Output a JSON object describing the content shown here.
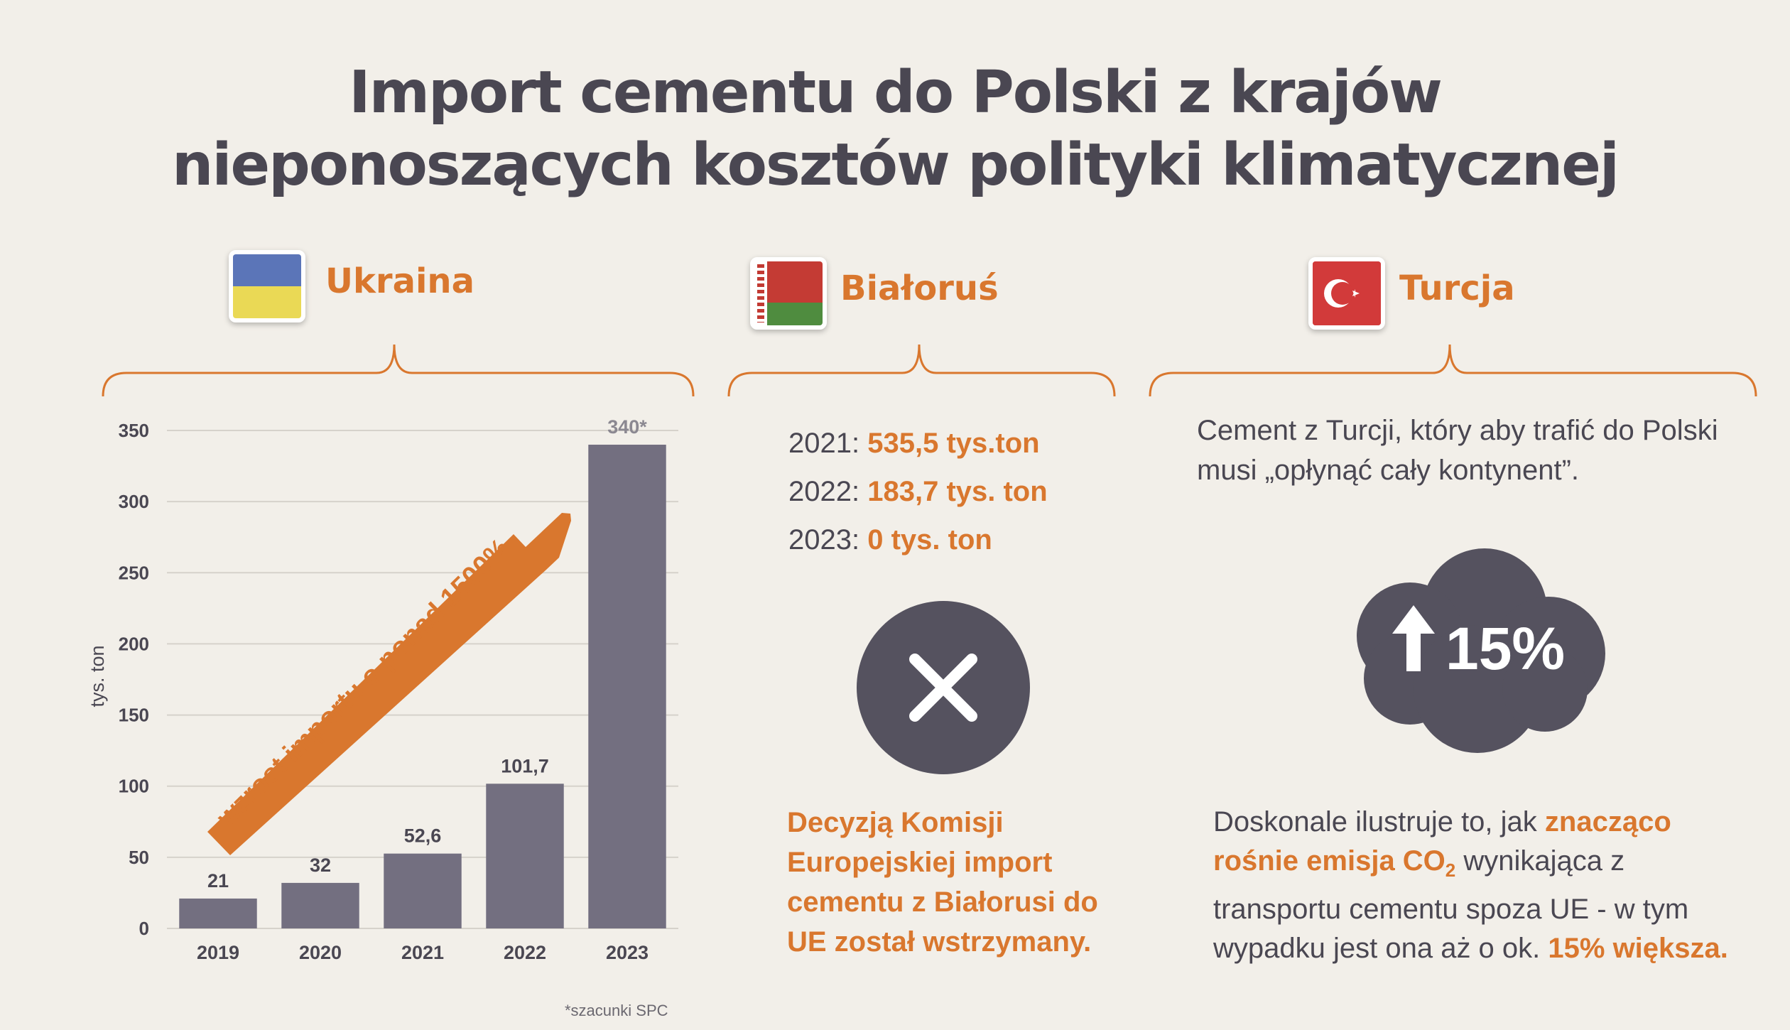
{
  "title": {
    "line1": "Import cementu do Polski z krajów",
    "line2": "nieponoszących kosztów polityki klimatycznej"
  },
  "colors": {
    "background": "#f2efe9",
    "accent": "#d9772e",
    "dark": "#4a4752",
    "bar": "#736f80",
    "cloud": "#55525f"
  },
  "ukraine": {
    "name": "Ukraina",
    "flag_icon": "ukraine-flag-icon"
  },
  "belarus": {
    "name": "Białoruś",
    "flag_icon": "belarus-flag-icon",
    "lines": [
      {
        "year": "2021:",
        "value": "535,5 tys.ton"
      },
      {
        "year": "2022:",
        "value": "183,7 tys. ton"
      },
      {
        "year": "2023:",
        "value": "0 tys. ton"
      }
    ],
    "icon": "x-mark-icon",
    "note": "Decyzją Komisji Europejskiej import cementu z Białorusi do UE został wstrzymany."
  },
  "turkey": {
    "name": "Turcja",
    "flag_icon": "turkey-flag-icon",
    "intro": "Cement z Turcji, który aby trafić  do Polski musi „opłynąć cały kontynent”.",
    "cloud_icon": "up-arrow-icon",
    "cloud_value": "15%",
    "note": {
      "part1": "Doskonale ilustruje to,  jak ",
      "hl1": "znacząco rośnie emisja CO",
      "sub": "2",
      "part2": " wynikająca z transportu cementu spoza UE - w tym wypadku jest ona aż o ok. ",
      "hl2": "15% większa."
    }
  },
  "chart_data": {
    "type": "bar",
    "categories": [
      "2019",
      "2020",
      "2021",
      "2022",
      "2023"
    ],
    "values": [
      21,
      32,
      52.6,
      101.7,
      340
    ],
    "value_labels": [
      "21",
      "32",
      "52,6",
      "101,7",
      "340*"
    ],
    "ylabel": "tys. ton",
    "ylim": [
      0,
      350
    ],
    "yticks": [
      0,
      50,
      100,
      150,
      200,
      250,
      300,
      350
    ],
    "grid": true,
    "annotation": "wzrost importu  o ponad 1500%",
    "footnote": "*szacunki SPC"
  }
}
